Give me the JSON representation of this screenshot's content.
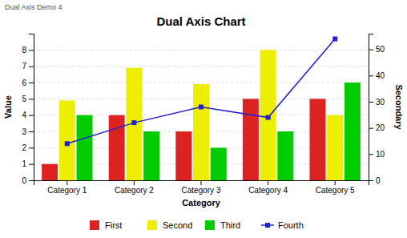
{
  "chart_data": {
    "type": "bar",
    "title": "Dual Axis Chart",
    "annotations": [
      "Dual Axis Demo 4"
    ],
    "xlabel": "Category",
    "ylabel": "Value",
    "y2label": "Secondary",
    "categories": [
      "Category 1",
      "Category 2",
      "Category 3",
      "Category 4",
      "Category 5"
    ],
    "series": [
      {
        "name": "First",
        "color": "#dd2222",
        "values": [
          1.0,
          4.0,
          3.0,
          5.0,
          5.0
        ]
      },
      {
        "name": "Second",
        "color": "#eeee00",
        "values": [
          4.9,
          6.9,
          5.9,
          8.0,
          4.0
        ]
      },
      {
        "name": "Third",
        "color": "#00cc00",
        "values": [
          4.0,
          3.0,
          2.0,
          3.0,
          6.0
        ]
      },
      {
        "name": "Fourth",
        "type": "line",
        "axis": "y2",
        "marker": "square",
        "color": "#2222cc",
        "values": [
          14,
          22,
          28,
          24,
          54
        ]
      }
    ],
    "ylim": [
      0,
      9
    ],
    "yticks": [
      0,
      1,
      2,
      3,
      4,
      5,
      6,
      7,
      8
    ],
    "y2lim": [
      0,
      56
    ],
    "y2ticks": [
      0,
      10,
      20,
      30,
      40,
      50
    ],
    "grid": true,
    "legend": "bottom"
  }
}
